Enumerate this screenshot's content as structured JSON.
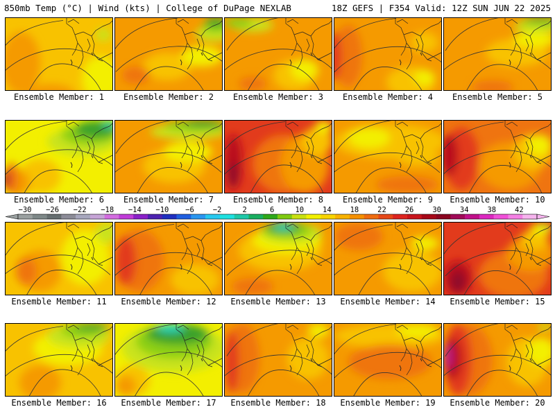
{
  "header": {
    "left": "850mb Temp (°C) | Wind (kts) | College of DuPage NEXLAB",
    "right": "18Z GEFS | F354 Valid: 12Z SUN JUN 22 2025"
  },
  "colorbar": {
    "ticks": [
      "-30",
      "-26",
      "-22",
      "-18",
      "-14",
      "-10",
      "-6",
      "-2",
      "2",
      "6",
      "10",
      "14",
      "18",
      "22",
      "26",
      "30",
      "34",
      "38",
      "42"
    ],
    "colors": [
      "#9aa0a0",
      "#7e8888",
      "#666e70",
      "#8c8c98",
      "#a7a7bd",
      "#c6a4d6",
      "#d36ce0",
      "#c03cd8",
      "#8a20c8",
      "#4c22b0",
      "#1f2fc0",
      "#1f5fe0",
      "#2a96f0",
      "#26c9f0",
      "#1ee0e0",
      "#1ec8a8",
      "#19ae60",
      "#2ea81a",
      "#7fca10",
      "#c8e010",
      "#f2f000",
      "#f8d400",
      "#f8b200",
      "#f59000",
      "#ef6c10",
      "#e64818",
      "#dd2420",
      "#c8141c",
      "#a60818",
      "#8a0620",
      "#a00a58",
      "#c0108a",
      "#dc28c0",
      "#f050d8",
      "#f480e4",
      "#f6b4ee"
    ]
  },
  "members": [
    {
      "label": "Ensemble Member: 1"
    },
    {
      "label": "Ensemble Member: 2"
    },
    {
      "label": "Ensemble Member: 3"
    },
    {
      "label": "Ensemble Member: 4"
    },
    {
      "label": "Ensemble Member: 5"
    },
    {
      "label": "Ensemble Member: 6"
    },
    {
      "label": "Ensemble Member: 7"
    },
    {
      "label": "Ensemble Member: 8"
    },
    {
      "label": "Ensemble Member: 9"
    },
    {
      "label": "Ensemble Member: 10"
    },
    {
      "label": "Ensemble Member: 11"
    },
    {
      "label": "Ensemble Member: 12"
    },
    {
      "label": "Ensemble Member: 13"
    },
    {
      "label": "Ensemble Member: 14"
    },
    {
      "label": "Ensemble Member: 15"
    },
    {
      "label": "Ensemble Member: 16"
    },
    {
      "label": "Ensemble Member: 17"
    },
    {
      "label": "Ensemble Member: 18"
    },
    {
      "label": "Ensemble Member: 19"
    },
    {
      "label": "Ensemble Member: 20"
    }
  ]
}
